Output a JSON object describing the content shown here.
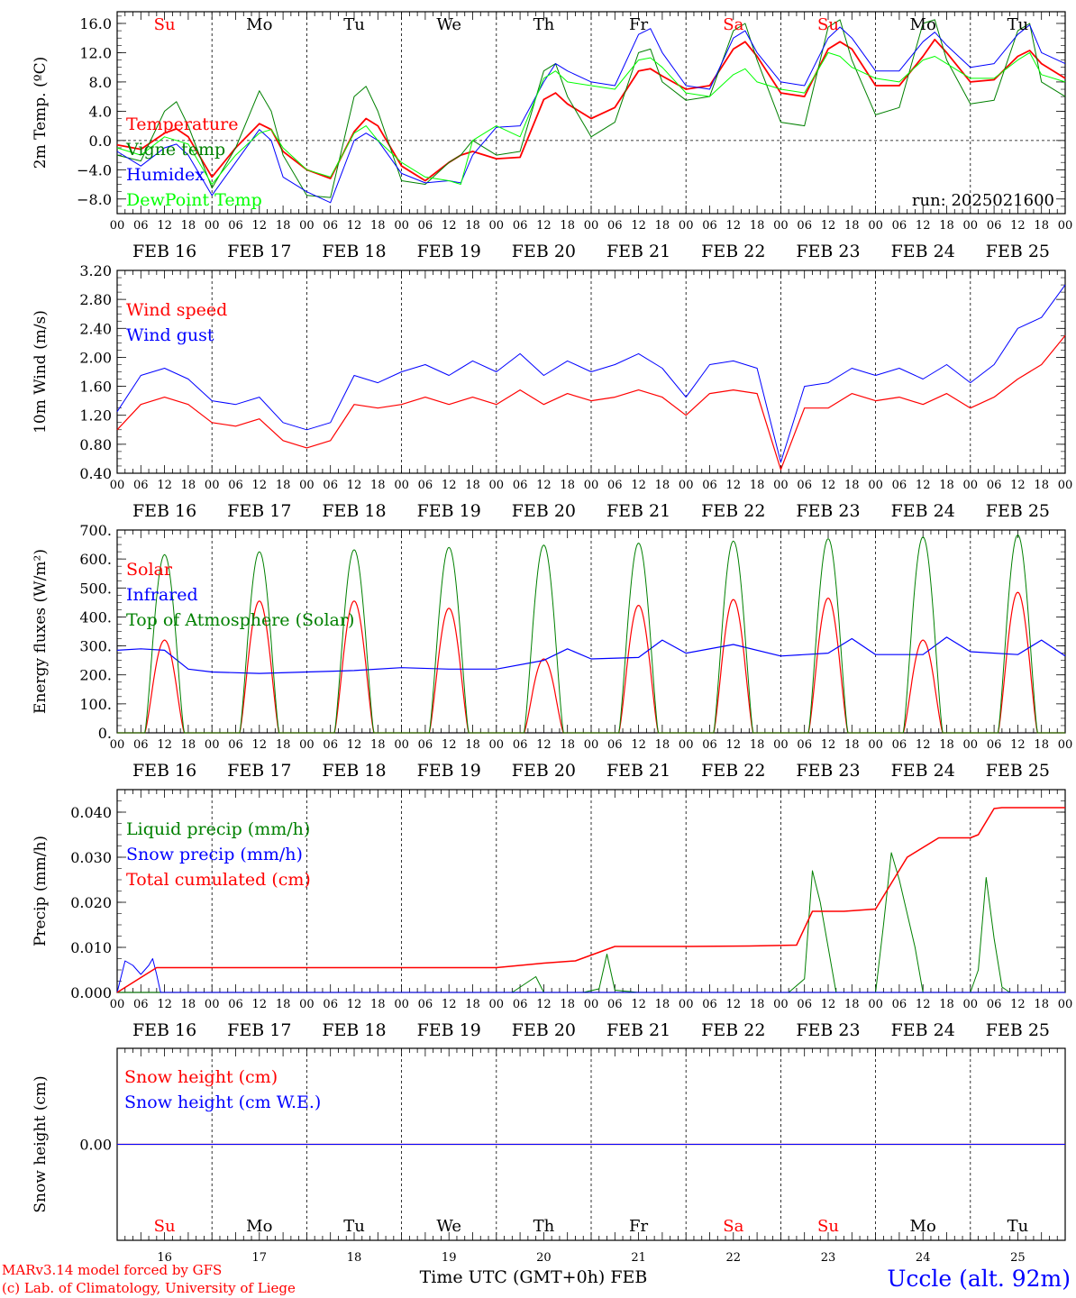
{
  "run_label": "run: 2025021600",
  "footer": {
    "model": "MARv3.14 model forced by GFS",
    "copyright": "(c) Lab. of Climatology, University of Liege",
    "time_axis": "Time UTC (GMT+0h) FEB",
    "station": "Uccle (alt. 92m)"
  },
  "days": [
    {
      "abbr": "Su",
      "date": "16",
      "label": "FEB 16",
      "weekend": true
    },
    {
      "abbr": "Mo",
      "date": "17",
      "label": "FEB 17",
      "weekend": false
    },
    {
      "abbr": "Tu",
      "date": "18",
      "label": "FEB 18",
      "weekend": false
    },
    {
      "abbr": "We",
      "date": "19",
      "label": "FEB 19",
      "weekend": false
    },
    {
      "abbr": "Th",
      "date": "20",
      "label": "FEB 20",
      "weekend": false
    },
    {
      "abbr": "Fr",
      "date": "21",
      "label": "FEB 21",
      "weekend": false
    },
    {
      "abbr": "Sa",
      "date": "22",
      "label": "FEB 22",
      "weekend": true
    },
    {
      "abbr": "Su",
      "date": "23",
      "label": "FEB 23",
      "weekend": true
    },
    {
      "abbr": "Mo",
      "date": "24",
      "label": "FEB 24",
      "weekend": false
    },
    {
      "abbr": "Tu",
      "date": "25",
      "label": "FEB 25",
      "weekend": false
    }
  ],
  "hour_ticks": [
    "00",
    "06",
    "12",
    "18"
  ],
  "colors": {
    "red": "#ff0000",
    "green": "#008000",
    "blue": "#0000ff",
    "lightgreen": "#00ff00",
    "weekend": "#ff0000",
    "weekday": "#000000"
  },
  "chart_data": [
    {
      "id": "temp",
      "type": "line",
      "ylabel": "2m Temp. (ºC)",
      "ylim": [
        -10,
        17.6
      ],
      "yticks": [
        -8,
        -4,
        0,
        4,
        8,
        12,
        16
      ],
      "ytick_labels": [
        "−8.0",
        "−4.0",
        "0.0",
        "4.0",
        "8.0",
        "12.0",
        "16.0"
      ],
      "x_unit": "hours since FEB 16 00 UTC",
      "xlim": [
        0,
        240
      ],
      "zero_line": true,
      "day_abbr_row": true,
      "series": [
        {
          "name": "Temperature",
          "color": "red",
          "width": 1.8,
          "x": [
            0,
            6,
            12,
            15,
            18,
            24,
            30,
            36,
            39,
            42,
            48,
            54,
            60,
            63,
            66,
            72,
            78,
            84,
            87,
            90,
            96,
            102,
            108,
            111,
            114,
            120,
            126,
            132,
            135,
            138,
            144,
            150,
            156,
            159,
            162,
            168,
            174,
            180,
            183,
            186,
            192,
            198,
            204,
            207,
            210,
            216,
            222,
            228,
            231,
            234,
            240
          ],
          "y": [
            -0.6,
            -1.2,
            1.0,
            1.6,
            0.5,
            -5.0,
            -1.0,
            2.3,
            1.5,
            -1.5,
            -4.0,
            -5.2,
            1.2,
            3.0,
            2.0,
            -3.5,
            -5.5,
            -3.0,
            -2.0,
            -1.5,
            -2.5,
            -2.3,
            5.6,
            6.5,
            5.0,
            3.0,
            4.5,
            9.5,
            9.8,
            8.8,
            7.0,
            7.5,
            12.5,
            13.5,
            11.5,
            6.5,
            6.0,
            12.5,
            13.5,
            12.5,
            7.5,
            7.5,
            11.5,
            13.8,
            12.0,
            8.0,
            8.3,
            11.5,
            12.3,
            10.5,
            8.5
          ]
        },
        {
          "name": "Vigne temp",
          "color": "green",
          "width": 1,
          "x": [
            0,
            6,
            12,
            15,
            18,
            24,
            30,
            36,
            39,
            42,
            48,
            54,
            60,
            63,
            66,
            72,
            78,
            84,
            87,
            90,
            96,
            102,
            108,
            111,
            114,
            120,
            126,
            132,
            135,
            138,
            144,
            150,
            156,
            159,
            162,
            168,
            174,
            180,
            183,
            186,
            192,
            198,
            204,
            207,
            210,
            216,
            222,
            228,
            231,
            234,
            240
          ],
          "y": [
            -2.0,
            -2.8,
            4.0,
            5.3,
            2.0,
            -6.5,
            -1.0,
            6.8,
            4.0,
            -2.0,
            -7.5,
            -7.8,
            6.0,
            7.4,
            4.0,
            -5.5,
            -6.0,
            -3.0,
            -2.0,
            0.0,
            -2.0,
            -1.5,
            9.5,
            10.5,
            6.0,
            0.5,
            2.5,
            12.0,
            12.5,
            8.0,
            5.5,
            6.0,
            15.0,
            16.0,
            11.0,
            2.5,
            2.0,
            15.5,
            16.5,
            11.0,
            3.5,
            4.5,
            16.0,
            16.5,
            11.0,
            5.0,
            5.5,
            15.0,
            16.0,
            8.0,
            6.0
          ]
        },
        {
          "name": "Humidex",
          "color": "blue",
          "width": 1,
          "x": [
            0,
            6,
            12,
            15,
            18,
            24,
            30,
            36,
            39,
            42,
            48,
            54,
            60,
            63,
            66,
            72,
            78,
            84,
            87,
            90,
            96,
            102,
            108,
            111,
            114,
            120,
            126,
            132,
            135,
            138,
            144,
            150,
            156,
            159,
            162,
            168,
            174,
            180,
            183,
            186,
            192,
            198,
            204,
            207,
            210,
            216,
            222,
            228,
            231,
            234,
            240
          ],
          "y": [
            -1.5,
            -3.5,
            -1.0,
            -0.5,
            -2.0,
            -7.5,
            -3.0,
            1.5,
            0.0,
            -5.0,
            -7.0,
            -8.5,
            0.0,
            1.0,
            0.0,
            -4.5,
            -5.8,
            -5.5,
            -5.8,
            -2.0,
            1.8,
            2.0,
            8.0,
            10.5,
            9.5,
            8.0,
            7.5,
            14.5,
            15.3,
            12.0,
            7.5,
            7.0,
            14.0,
            15.0,
            12.0,
            8.0,
            7.5,
            14.0,
            15.5,
            14.0,
            9.5,
            9.5,
            13.5,
            14.8,
            13.0,
            10.0,
            10.5,
            14.5,
            15.8,
            12.0,
            10.5
          ]
        },
        {
          "name": "DewPoint Temp",
          "color": "lightgreen",
          "width": 1,
          "x": [
            0,
            6,
            12,
            15,
            18,
            24,
            30,
            36,
            39,
            42,
            48,
            54,
            60,
            63,
            66,
            72,
            78,
            84,
            87,
            90,
            96,
            102,
            108,
            111,
            114,
            120,
            126,
            132,
            135,
            138,
            144,
            150,
            156,
            159,
            162,
            168,
            174,
            180,
            183,
            186,
            192,
            198,
            204,
            207,
            210,
            216,
            222,
            228,
            231,
            234,
            240
          ],
          "y": [
            -1.0,
            -2.0,
            0.5,
            0.0,
            -0.5,
            -6.0,
            -2.0,
            1.0,
            1.5,
            -1.0,
            -4.0,
            -5.0,
            1.0,
            2.0,
            0.0,
            -3.0,
            -5.0,
            -5.5,
            -6.0,
            0.0,
            2.0,
            0.5,
            8.5,
            9.5,
            8.0,
            7.5,
            7.0,
            11.0,
            11.3,
            10.0,
            6.5,
            6.0,
            9.0,
            9.8,
            8.0,
            7.0,
            6.5,
            12.0,
            11.5,
            10.0,
            8.5,
            8.0,
            11.0,
            11.5,
            10.5,
            8.5,
            8.5,
            11.0,
            12.0,
            9.0,
            8.0
          ]
        }
      ],
      "legend": [
        "Temperature",
        "Vigne temp",
        "Humidex",
        "DewPoint Temp"
      ],
      "legend_placement": "left"
    },
    {
      "id": "wind",
      "type": "line",
      "ylabel": "10m Wind (m/s)",
      "ylim": [
        0.4,
        3.2
      ],
      "yticks": [
        0.4,
        0.8,
        1.2,
        1.6,
        2.0,
        2.4,
        2.8,
        3.2
      ],
      "ytick_labels": [
        "0.40",
        "0.80",
        "1.20",
        "1.60",
        "2.00",
        "2.40",
        "2.80",
        "3.20"
      ],
      "xlim": [
        0,
        240
      ],
      "series": [
        {
          "name": "Wind speed",
          "color": "red",
          "width": 1.2,
          "x": [
            0,
            6,
            12,
            18,
            24,
            30,
            36,
            42,
            48,
            54,
            60,
            66,
            72,
            78,
            84,
            90,
            96,
            102,
            108,
            114,
            120,
            126,
            132,
            138,
            144,
            150,
            156,
            162,
            168,
            174,
            180,
            186,
            192,
            198,
            204,
            210,
            216,
            222,
            228,
            234,
            240
          ],
          "y": [
            1.0,
            1.35,
            1.45,
            1.35,
            1.1,
            1.05,
            1.15,
            0.85,
            0.75,
            0.85,
            1.35,
            1.3,
            1.35,
            1.45,
            1.35,
            1.45,
            1.35,
            1.55,
            1.35,
            1.5,
            1.4,
            1.45,
            1.55,
            1.45,
            1.2,
            1.5,
            1.55,
            1.5,
            0.45,
            1.3,
            1.3,
            1.5,
            1.4,
            1.45,
            1.35,
            1.5,
            1.3,
            1.45,
            1.7,
            1.9,
            2.3
          ]
        },
        {
          "name": "Wind gust",
          "color": "blue",
          "width": 1,
          "x": [
            0,
            6,
            12,
            18,
            24,
            30,
            36,
            42,
            48,
            54,
            60,
            66,
            72,
            78,
            84,
            90,
            96,
            102,
            108,
            114,
            120,
            126,
            132,
            138,
            144,
            150,
            156,
            162,
            168,
            174,
            180,
            186,
            192,
            198,
            204,
            210,
            216,
            222,
            228,
            234,
            240
          ],
          "y": [
            1.25,
            1.75,
            1.85,
            1.7,
            1.4,
            1.35,
            1.45,
            1.1,
            1.0,
            1.1,
            1.75,
            1.65,
            1.8,
            1.9,
            1.75,
            1.95,
            1.8,
            2.05,
            1.75,
            1.95,
            1.8,
            1.9,
            2.05,
            1.85,
            1.45,
            1.9,
            1.95,
            1.85,
            0.55,
            1.6,
            1.65,
            1.85,
            1.75,
            1.85,
            1.7,
            1.9,
            1.65,
            1.9,
            2.4,
            2.55,
            3.0
          ]
        }
      ],
      "legend": [
        "Wind speed",
        "Wind gust"
      ],
      "legend_placement": "left"
    },
    {
      "id": "energy",
      "type": "line",
      "ylabel": "Energy fluxes (W/m²)",
      "ylim": [
        0,
        700
      ],
      "yticks": [
        0,
        100,
        200,
        300,
        400,
        500,
        600,
        700
      ],
      "ytick_labels": [
        "0.",
        "100.",
        "200.",
        "300.",
        "400.",
        "500.",
        "600.",
        "700."
      ],
      "xlim": [
        0,
        240
      ],
      "series": [
        {
          "name": "Solar",
          "color": "red",
          "width": 1.2,
          "daily_peaks": [
            320,
            455,
            455,
            430,
            255,
            440,
            460,
            465,
            320,
            485
          ],
          "sunrise_hour": 7,
          "sunset_hour": 17
        },
        {
          "name": "Infrared",
          "color": "blue",
          "width": 1.2,
          "x": [
            0,
            6,
            12,
            18,
            24,
            36,
            48,
            60,
            72,
            84,
            96,
            108,
            114,
            120,
            132,
            138,
            144,
            156,
            168,
            180,
            186,
            192,
            204,
            210,
            216,
            228,
            234,
            240
          ],
          "y": [
            285,
            290,
            285,
            220,
            210,
            205,
            210,
            215,
            225,
            220,
            220,
            250,
            290,
            255,
            260,
            320,
            275,
            305,
            265,
            275,
            325,
            270,
            270,
            330,
            280,
            270,
            320,
            265
          ]
        },
        {
          "name": "Top of Atmosphere (Solar)",
          "color": "green",
          "width": 1,
          "daily_peaks": [
            615,
            625,
            632,
            640,
            648,
            655,
            662,
            670,
            676,
            683
          ],
          "sunrise_hour": 7,
          "sunset_hour": 17
        }
      ],
      "legend": [
        "Solar",
        "Infrared",
        "Top of Atmosphere (Solar)"
      ],
      "legend_placement": "left"
    },
    {
      "id": "precip",
      "type": "line",
      "ylabel": "Precip (mm/h)",
      "ylim": [
        0,
        0.045
      ],
      "yticks": [
        0,
        0.01,
        0.02,
        0.03,
        0.04
      ],
      "ytick_labels": [
        "0.000",
        "0.010",
        "0.020",
        "0.030",
        "0.040"
      ],
      "xlim": [
        0,
        240
      ],
      "series": [
        {
          "name": "Liquid precip (mm/h)",
          "color": "green",
          "width": 1,
          "x": [
            0,
            90,
            100,
            106,
            108,
            118,
            122,
            124,
            126,
            132,
            170,
            174,
            176,
            178,
            182,
            192,
            194,
            196,
            198,
            202,
            204,
            216,
            218,
            220,
            222,
            224,
            226,
            240
          ],
          "y": [
            0,
            0,
            0,
            0.0035,
            0,
            0,
            0.0008,
            0.0085,
            0.0005,
            0,
            0,
            0.003,
            0.027,
            0.02,
            0,
            0,
            0.015,
            0.031,
            0.025,
            0.01,
            0,
            0,
            0.005,
            0.0255,
            0.012,
            0.0012,
            0,
            0
          ]
        },
        {
          "name": "Snow precip (mm/h)",
          "color": "blue",
          "width": 1,
          "x": [
            0,
            2,
            4,
            6,
            8,
            9,
            10,
            11,
            240
          ],
          "y": [
            0,
            0.007,
            0.006,
            0.004,
            0.006,
            0.0075,
            0.004,
            0,
            0
          ]
        },
        {
          "name": "Total cumulated (cm)",
          "color": "red",
          "width": 1.5,
          "x": [
            0,
            10,
            96,
            108,
            116,
            126,
            130,
            144,
            160,
            172,
            176,
            184,
            192,
            200,
            208,
            216,
            218,
            222,
            224,
            240
          ],
          "y": [
            0,
            0.0055,
            0.0055,
            0.0065,
            0.007,
            0.0102,
            0.0102,
            0.0102,
            0.0103,
            0.0105,
            0.018,
            0.018,
            0.0185,
            0.03,
            0.0343,
            0.0343,
            0.035,
            0.0408,
            0.041,
            0.041
          ]
        }
      ],
      "legend": [
        "Liquid precip (mm/h)",
        "Snow precip (mm/h)",
        "Total cumulated (cm)"
      ],
      "legend_placement": "left"
    },
    {
      "id": "snow",
      "type": "line",
      "ylabel": "Snow height (cm)",
      "ylim": [
        -1,
        1
      ],
      "yticks": [
        0
      ],
      "ytick_labels": [
        "0.00"
      ],
      "xlim": [
        0,
        240
      ],
      "series": [
        {
          "name": "Snow height (cm)",
          "color": "red",
          "width": 1.2,
          "x": [
            0,
            240
          ],
          "y": [
            0,
            0
          ]
        },
        {
          "name": "Snow height (cm W.E.)",
          "color": "blue",
          "width": 1,
          "x": [
            0,
            240
          ],
          "y": [
            0,
            0
          ]
        }
      ],
      "legend": [
        "Snow height (cm)",
        "Snow height (cm W.E.)"
      ],
      "legend_placement": "left",
      "day_abbr_bottom": true
    }
  ]
}
